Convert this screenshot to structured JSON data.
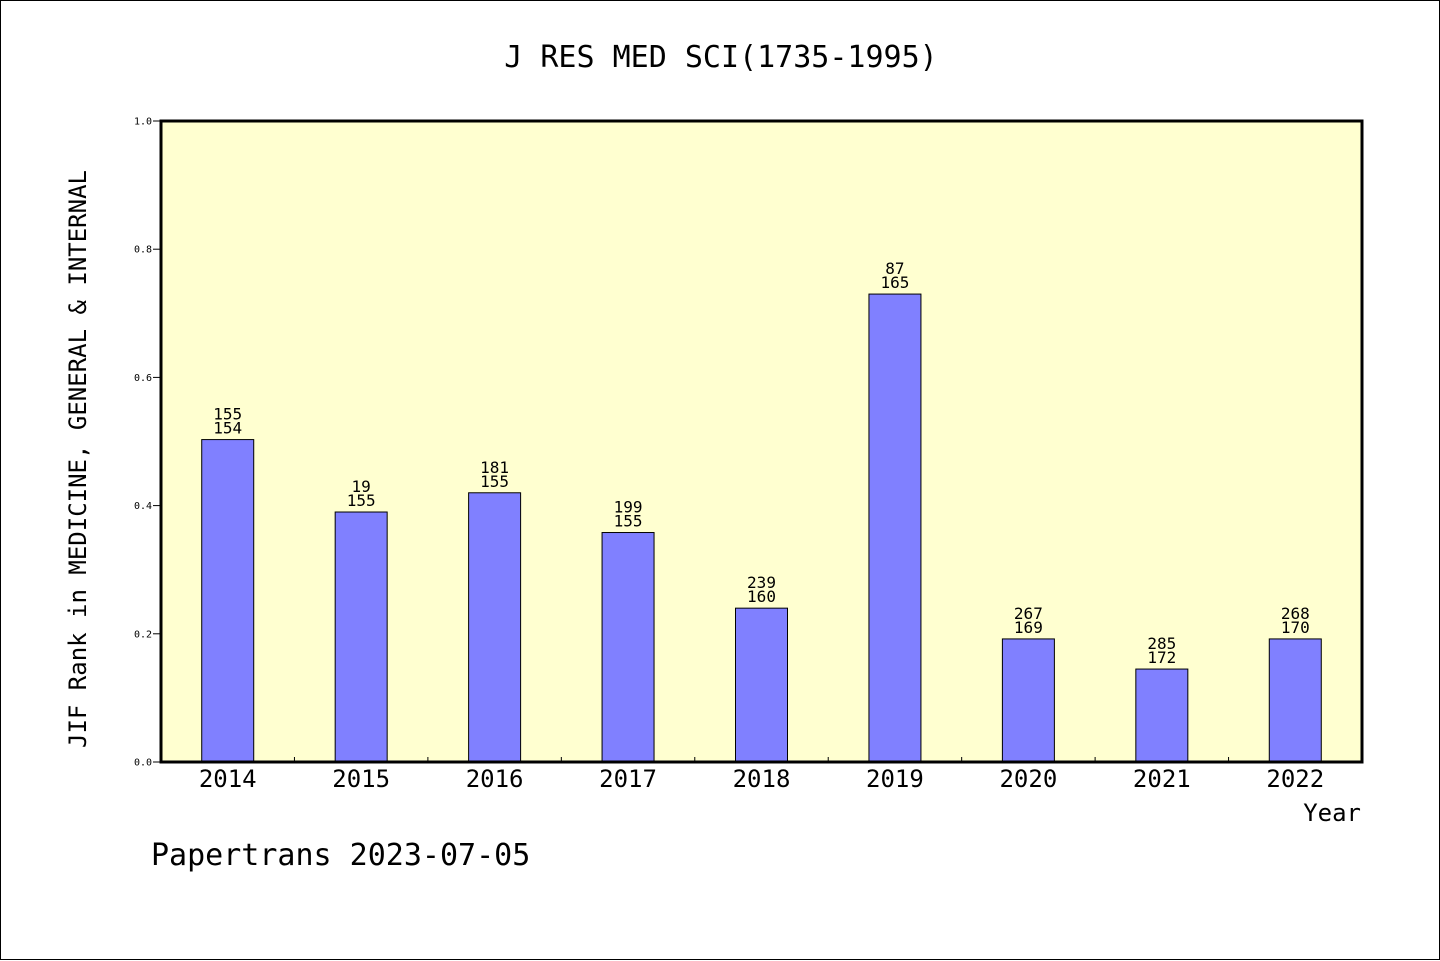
{
  "footer_text": "Papertrans 2023-07-05",
  "chart_data": {
    "type": "bar",
    "title": "J RES MED SCI(1735-1995)",
    "xlabel": "Year",
    "ylabel": "JIF Rank in MEDICINE, GENERAL & INTERNAL",
    "ylim": [
      0,
      1.0
    ],
    "yticks": [
      "0.0",
      "0.2",
      "0.4",
      "0.6",
      "0.8",
      "1.0"
    ],
    "grid": false,
    "colors": {
      "bar": "#8080ff",
      "plot_bg": "#ffffd0",
      "bar_edge": "#000000"
    },
    "categories": [
      "2014",
      "2015",
      "2016",
      "2017",
      "2018",
      "2019",
      "2020",
      "2021",
      "2022"
    ],
    "values": [
      0.503,
      0.39,
      0.42,
      0.358,
      0.24,
      0.73,
      0.192,
      0.145,
      0.192
    ],
    "labels_top": [
      "155",
      "19",
      "181",
      "199",
      "239",
      "87",
      "267",
      "285",
      "268"
    ],
    "labels_bottom": [
      "154",
      "155",
      "155",
      "155",
      "160",
      "165",
      "169",
      "172",
      "170"
    ]
  }
}
